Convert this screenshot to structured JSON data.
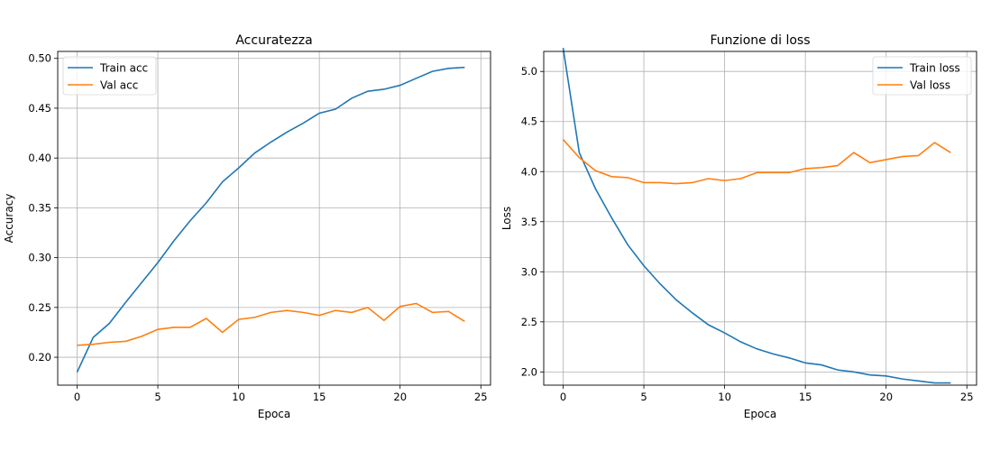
{
  "chart_data": [
    {
      "type": "line",
      "title": "Accuratezza",
      "xlabel": "Epoca",
      "ylabel": "Accuracy",
      "xlim": [
        -1.2,
        25.6
      ],
      "ylim": [
        0.172,
        0.507
      ],
      "xticks": [
        0,
        5,
        10,
        15,
        20,
        25
      ],
      "xtick_labels": [
        "0",
        "5",
        "10",
        "15",
        "20",
        "25"
      ],
      "yticks": [
        0.2,
        0.25,
        0.3,
        0.35,
        0.4,
        0.45,
        0.5
      ],
      "ytick_labels": [
        "0.20",
        "0.25",
        "0.30",
        "0.35",
        "0.40",
        "0.45",
        "0.50"
      ],
      "grid": true,
      "legend_position": "top-left",
      "x": [
        0,
        1,
        2,
        3,
        4,
        5,
        6,
        7,
        8,
        9,
        10,
        11,
        12,
        13,
        14,
        15,
        16,
        17,
        18,
        19,
        20,
        21,
        22,
        23,
        24
      ],
      "series": [
        {
          "name": "Train acc",
          "color": "#1f77b4",
          "values": [
            0.185,
            0.22,
            0.234,
            0.255,
            0.275,
            0.295,
            0.317,
            0.337,
            0.355,
            0.376,
            0.39,
            0.405,
            0.416,
            0.426,
            0.435,
            0.445,
            0.449,
            0.46,
            0.467,
            0.469,
            0.473,
            0.48,
            0.487,
            0.49,
            0.491
          ]
        },
        {
          "name": "Val acc",
          "color": "#ff7f0e",
          "values": [
            0.212,
            0.213,
            0.215,
            0.216,
            0.221,
            0.228,
            0.23,
            0.23,
            0.239,
            0.225,
            0.238,
            0.24,
            0.245,
            0.247,
            0.245,
            0.242,
            0.247,
            0.245,
            0.25,
            0.237,
            0.251,
            0.254,
            0.245,
            0.246,
            0.236
          ]
        }
      ]
    },
    {
      "type": "line",
      "title": "Funzione di loss",
      "xlabel": "Epoca",
      "ylabel": "Loss",
      "xlim": [
        -1.2,
        25.6
      ],
      "ylim": [
        1.868,
        5.2
      ],
      "xticks": [
        0,
        5,
        10,
        15,
        20,
        25
      ],
      "xtick_labels": [
        "0",
        "5",
        "10",
        "15",
        "20",
        "25"
      ],
      "yticks": [
        2.0,
        2.5,
        3.0,
        3.5,
        4.0,
        4.5,
        5.0
      ],
      "ytick_labels": [
        "2.0",
        "2.5",
        "3.0",
        "3.5",
        "4.0",
        "4.5",
        "5.0"
      ],
      "grid": true,
      "legend_position": "top-right",
      "x": [
        0,
        1,
        2,
        3,
        4,
        5,
        6,
        7,
        8,
        9,
        10,
        11,
        12,
        13,
        14,
        15,
        16,
        17,
        18,
        19,
        20,
        21,
        22,
        23,
        24
      ],
      "series": [
        {
          "name": "Train loss",
          "color": "#1f77b4",
          "values": [
            5.235,
            4.19,
            3.83,
            3.54,
            3.27,
            3.06,
            2.88,
            2.72,
            2.59,
            2.47,
            2.39,
            2.3,
            2.23,
            2.18,
            2.14,
            2.09,
            2.07,
            2.02,
            2.0,
            1.97,
            1.96,
            1.93,
            1.91,
            1.89,
            1.89
          ]
        },
        {
          "name": "Val loss",
          "color": "#ff7f0e",
          "values": [
            4.32,
            4.14,
            4.01,
            3.95,
            3.94,
            3.89,
            3.89,
            3.88,
            3.89,
            3.93,
            3.91,
            3.93,
            3.99,
            3.99,
            3.99,
            4.03,
            4.04,
            4.06,
            4.19,
            4.09,
            4.12,
            4.15,
            4.16,
            4.29,
            4.19
          ]
        }
      ]
    }
  ]
}
